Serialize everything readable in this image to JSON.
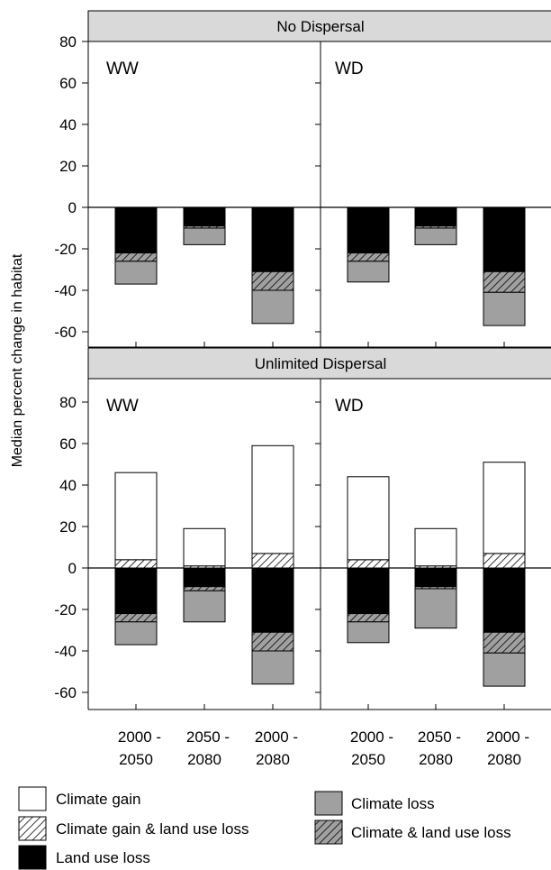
{
  "chart_data": {
    "type": "bar",
    "subtype": "stacked-bar-small-multiples",
    "ylabel": "Median percent change in habitat",
    "ylim": [
      -70,
      90
    ],
    "yticks": [
      80,
      60,
      40,
      20,
      0,
      -20,
      -40,
      -60
    ],
    "categories": [
      "2000 -\n2050",
      "2050 -\n2080",
      "2000 -\n2080"
    ],
    "category_lines": [
      [
        "2000 -",
        "2050"
      ],
      [
        "2050 -",
        "2080"
      ],
      [
        "2000 -",
        "2080"
      ]
    ],
    "rows": [
      {
        "title": "No Dispersal",
        "panels": [
          {
            "label": "WW",
            "bars": [
              {
                "climate_gain": 0,
                "climate_gain_land_use_loss": 0,
                "land_use_loss": -22,
                "climate_land_use_loss": -4,
                "climate_loss": -11,
                "total_gain": 0,
                "total_loss": -37
              },
              {
                "climate_gain": 0,
                "climate_gain_land_use_loss": 0,
                "land_use_loss": -9,
                "climate_land_use_loss": -1,
                "climate_loss": -8,
                "total_gain": 0,
                "total_loss": -18
              },
              {
                "climate_gain": 0,
                "climate_gain_land_use_loss": 0,
                "land_use_loss": -31,
                "climate_land_use_loss": -9,
                "climate_loss": -16,
                "total_gain": 0,
                "total_loss": -56
              }
            ]
          },
          {
            "label": "WD",
            "bars": [
              {
                "climate_gain": 0,
                "climate_gain_land_use_loss": 0,
                "land_use_loss": -22,
                "climate_land_use_loss": -4,
                "climate_loss": -10,
                "total_gain": 0,
                "total_loss": -36
              },
              {
                "climate_gain": 0,
                "climate_gain_land_use_loss": 0,
                "land_use_loss": -9,
                "climate_land_use_loss": -1,
                "climate_loss": -8,
                "total_gain": 0,
                "total_loss": -18
              },
              {
                "climate_gain": 0,
                "climate_gain_land_use_loss": 0,
                "land_use_loss": -31,
                "climate_land_use_loss": -10,
                "climate_loss": -16,
                "total_gain": 0,
                "total_loss": -57
              }
            ]
          }
        ]
      },
      {
        "title": "Unlimited Dispersal",
        "panels": [
          {
            "label": "WW",
            "bars": [
              {
                "climate_gain": 42,
                "climate_gain_land_use_loss": 4,
                "land_use_loss": -22,
                "climate_land_use_loss": -4,
                "climate_loss": -11,
                "total_gain": 46,
                "total_loss": -37
              },
              {
                "climate_gain": 18,
                "climate_gain_land_use_loss": 1,
                "land_use_loss": -9,
                "climate_land_use_loss": -2,
                "climate_loss": -15,
                "total_gain": 19,
                "total_loss": -26
              },
              {
                "climate_gain": 52,
                "climate_gain_land_use_loss": 7,
                "land_use_loss": -31,
                "climate_land_use_loss": -9,
                "climate_loss": -16,
                "total_gain": 59,
                "total_loss": -56
              }
            ]
          },
          {
            "label": "WD",
            "bars": [
              {
                "climate_gain": 40,
                "climate_gain_land_use_loss": 4,
                "land_use_loss": -22,
                "climate_land_use_loss": -4,
                "climate_loss": -10,
                "total_gain": 44,
                "total_loss": -36
              },
              {
                "climate_gain": 18,
                "climate_gain_land_use_loss": 1,
                "land_use_loss": -9,
                "climate_land_use_loss": -1,
                "climate_loss": -19,
                "total_gain": 19,
                "total_loss": -29
              },
              {
                "climate_gain": 44,
                "climate_gain_land_use_loss": 7,
                "land_use_loss": -31,
                "climate_land_use_loss": -10,
                "climate_loss": -16,
                "total_gain": 51,
                "total_loss": -57
              }
            ]
          }
        ]
      }
    ],
    "legend": [
      {
        "key": "climate_gain",
        "label": "Climate gain",
        "fill": "#ffffff",
        "pattern": "none"
      },
      {
        "key": "climate_loss",
        "label": "Climate loss",
        "fill": "#a0a0a0",
        "pattern": "none"
      },
      {
        "key": "climate_gain_land_use_loss",
        "label": "Climate gain & land use loss",
        "fill": "#ffffff",
        "pattern": "hatch"
      },
      {
        "key": "climate_land_use_loss",
        "label": "Climate & land use loss",
        "fill": "#a0a0a0",
        "pattern": "hatch"
      },
      {
        "key": "land_use_loss",
        "label": "Land use loss",
        "fill": "#000000",
        "pattern": "none"
      }
    ],
    "legend_placement": "bottom",
    "grid": false,
    "colors": {
      "panel_header": "#d9d9d9",
      "climate_loss": "#a0a0a0",
      "land_use_loss": "#000000",
      "climate_gain": "#ffffff"
    }
  }
}
